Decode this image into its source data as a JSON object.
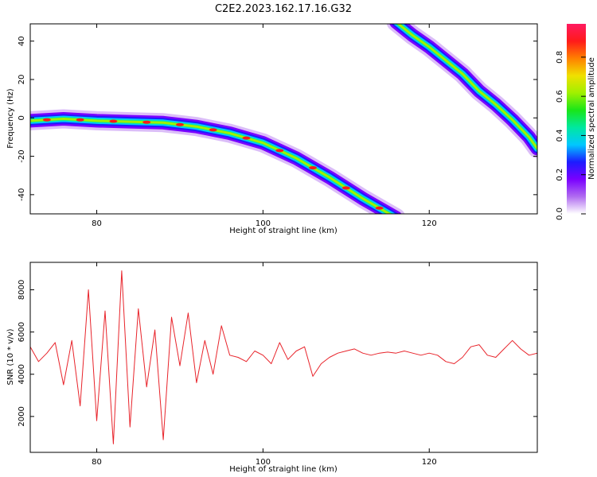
{
  "figure": {
    "title": "C2E2.2023.162.17.16.G32"
  },
  "chart_data": [
    {
      "type": "heatmap",
      "xlabel": "Height of straight line (km)",
      "ylabel": "Frequency (Hz)",
      "xlim": [
        72,
        133
      ],
      "ylim": [
        -50,
        49
      ],
      "xticks": [
        80,
        100,
        120
      ],
      "yticks": [
        -40,
        -20,
        0,
        20,
        40
      ],
      "colorbar": {
        "label": "Normalized spectral amplitude",
        "range": [
          0.0,
          0.97
        ],
        "ticks": [
          0.0,
          0.2,
          0.4,
          0.6,
          0.8
        ],
        "colormap": [
          "#ffffff",
          "#b06cf0",
          "#7a00ff",
          "#1c1cff",
          "#00c8ff",
          "#00e8a0",
          "#19e619",
          "#a0f000",
          "#f0e000",
          "#ff8000",
          "#ff1a1a",
          "#ff1a60"
        ]
      },
      "traces": [
        {
          "name": "",
          "x": [
            72,
            76,
            80,
            84,
            88,
            92,
            96,
            100,
            104,
            108,
            112,
            116
          ],
          "y": [
            -1.5,
            -0.5,
            -1.5,
            -2,
            -2.5,
            -4.5,
            -8,
            -13,
            -21,
            -31,
            -42,
            -52
          ]
        },
        {
          "name": "",
          "x": [
            116,
            118,
            120,
            122,
            124,
            126,
            128,
            130,
            132,
            133
          ],
          "y": [
            50,
            43,
            37,
            30,
            23,
            14,
            7,
            -1,
            -10,
            -16
          ]
        }
      ]
    },
    {
      "type": "line",
      "xlabel": "Height of straight line (km)",
      "ylabel": "SNR (10 * v/v)",
      "xlim": [
        72,
        133
      ],
      "ylim": [
        300,
        9300
      ],
      "xticks": [
        80,
        100,
        120
      ],
      "yticks": [
        2000,
        4000,
        6000,
        8000
      ],
      "color": "#e8232a",
      "series": [
        {
          "name": "",
          "x": [
            72,
            73,
            74,
            75,
            76,
            77,
            78,
            79,
            80,
            81,
            82,
            83,
            84,
            85,
            86,
            87,
            88,
            89,
            90,
            91,
            92,
            93,
            94,
            95,
            96,
            97,
            98,
            99,
            100,
            101,
            102,
            103,
            104,
            105,
            106,
            107,
            108,
            109,
            110,
            111,
            112,
            113,
            114,
            115,
            116,
            117,
            118,
            119,
            120,
            121,
            122,
            123,
            124,
            125,
            126,
            127,
            128,
            129,
            130,
            131,
            132,
            133
          ],
          "y": [
            5300,
            4600,
            5000,
            5500,
            3500,
            5600,
            2500,
            8000,
            1800,
            7000,
            700,
            8900,
            1500,
            7100,
            3400,
            6100,
            900,
            6700,
            4400,
            6900,
            3600,
            5600,
            4000,
            6300,
            4900,
            4800,
            4600,
            5100,
            4900,
            4500,
            5500,
            4700,
            5100,
            5300,
            3900,
            4500,
            4800,
            5000,
            5100,
            5200,
            5000,
            4900,
            5000,
            5050,
            5000,
            5100,
            5000,
            4900,
            5000,
            4900,
            4600,
            4500,
            4800,
            5300,
            5400,
            4900,
            4800,
            5200,
            5600,
            5200,
            4900,
            5000
          ]
        }
      ]
    }
  ]
}
